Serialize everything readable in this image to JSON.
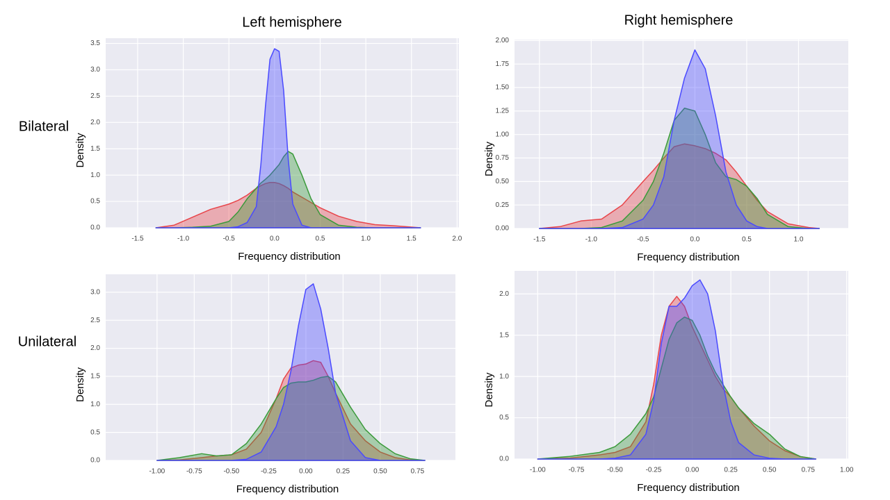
{
  "column_titles": [
    "Left hemisphere",
    "Right hemisphere"
  ],
  "row_labels": [
    "Bilateral",
    "Unilateral"
  ],
  "chart_data": [
    {
      "type": "area",
      "xlabel": "Frequency distribution",
      "ylabel": "Density",
      "grid": true,
      "background": "#eaeaf2",
      "xlim": [
        -1.85,
        2.02
      ],
      "ylim": [
        0,
        3.6
      ],
      "xticks": [
        -1.5,
        {
          "value": -1,
          "label": "-1.0"
        },
        -0.5,
        {
          "value": 0,
          "label": "0.0"
        },
        0.5,
        {
          "value": 1,
          "label": "1.0"
        },
        1.5,
        {
          "value": 2,
          "label": "2.0"
        }
      ],
      "yticks": [
        {
          "value": 0,
          "label": "0.0"
        },
        0.5,
        {
          "value": 1,
          "label": "1.0"
        },
        1.5,
        {
          "value": 2,
          "label": "2.0"
        },
        2.5,
        {
          "value": 3,
          "label": "3.0"
        },
        3.5
      ],
      "x": [
        -1.3,
        -1.1,
        -0.9,
        -0.7,
        -0.5,
        -0.4,
        -0.3,
        -0.2,
        -0.15,
        -0.1,
        -0.05,
        0,
        0.05,
        0.1,
        0.15,
        0.2,
        0.3,
        0.4,
        0.5,
        0.7,
        0.9,
        1.1,
        1.3,
        1.6
      ],
      "series": [
        {
          "color": "#e8454a",
          "values": [
            0,
            0.05,
            0.2,
            0.35,
            0.45,
            0.52,
            0.62,
            0.75,
            0.8,
            0.84,
            0.86,
            0.86,
            0.84,
            0.8,
            0.75,
            0.68,
            0.58,
            0.48,
            0.38,
            0.22,
            0.12,
            0.06,
            0.04,
            0
          ]
        },
        {
          "color": "#3a9a3a",
          "values": [
            0,
            0,
            0.01,
            0.03,
            0.12,
            0.3,
            0.55,
            0.75,
            0.85,
            0.92,
            1.0,
            1.1,
            1.2,
            1.35,
            1.45,
            1.4,
            1.0,
            0.55,
            0.25,
            0.05,
            0.01,
            0,
            0,
            0
          ]
        },
        {
          "color": "#4a4aff",
          "values": [
            0,
            0,
            0,
            0,
            0,
            0.02,
            0.1,
            0.4,
            1.2,
            2.3,
            3.2,
            3.4,
            3.35,
            2.6,
            1.3,
            0.45,
            0.05,
            0,
            0,
            0,
            0,
            0,
            0,
            0
          ]
        }
      ]
    },
    {
      "type": "area",
      "xlabel": "Frequency distribution",
      "ylabel": "Density",
      "grid": true,
      "background": "#eaeaf2",
      "xlim": [
        -1.74,
        1.48
      ],
      "ylim": [
        0,
        2.01
      ],
      "xticks": [
        -1.5,
        {
          "value": -1,
          "label": "-1.0"
        },
        -0.5,
        {
          "value": 0,
          "label": "0.0"
        },
        0.5,
        {
          "value": 1,
          "label": "1.0"
        }
      ],
      "yticks": [
        {
          "value": 0,
          "label": "0.00"
        },
        0.25,
        {
          "value": 0.5,
          "label": "0.50"
        },
        0.75,
        {
          "value": 1,
          "label": "1.00"
        },
        1.25,
        {
          "value": 1.5,
          "label": "1.50"
        },
        1.75,
        {
          "value": 2,
          "label": "2.00"
        }
      ],
      "x": [
        -1.5,
        -1.3,
        -1.1,
        -0.9,
        -0.7,
        -0.5,
        -0.4,
        -0.3,
        -0.2,
        -0.1,
        0,
        0.1,
        0.2,
        0.3,
        0.4,
        0.5,
        0.6,
        0.7,
        0.9,
        1.1,
        1.2
      ],
      "series": [
        {
          "color": "#e8454a",
          "values": [
            0,
            0.02,
            0.08,
            0.1,
            0.25,
            0.5,
            0.62,
            0.75,
            0.87,
            0.9,
            0.88,
            0.85,
            0.8,
            0.73,
            0.6,
            0.45,
            0.3,
            0.18,
            0.05,
            0.01,
            0
          ]
        },
        {
          "color": "#3a9a3a",
          "values": [
            0,
            0,
            0,
            0.01,
            0.08,
            0.3,
            0.5,
            0.8,
            1.15,
            1.28,
            1.25,
            1.0,
            0.7,
            0.55,
            0.52,
            0.45,
            0.32,
            0.15,
            0.02,
            0,
            0
          ]
        },
        {
          "color": "#4a4aff",
          "values": [
            0,
            0,
            0,
            0,
            0.01,
            0.1,
            0.25,
            0.55,
            1.15,
            1.6,
            1.9,
            1.7,
            1.2,
            0.6,
            0.25,
            0.08,
            0.02,
            0,
            0,
            0,
            0
          ]
        }
      ]
    },
    {
      "type": "area",
      "xlabel": "Frequency distribution",
      "ylabel": "Density",
      "grid": true,
      "background": "#eaeaf2",
      "xlim": [
        -1.345,
        1.005
      ],
      "ylim": [
        0,
        3.32
      ],
      "xticks": [
        {
          "value": -1,
          "label": "-1.00"
        },
        -0.75,
        {
          "value": -0.5,
          "label": "-0.50"
        },
        -0.25,
        {
          "value": 0,
          "label": "0.00"
        },
        0.25,
        {
          "value": 0.5,
          "label": "0.50"
        },
        0.75
      ],
      "yticks": [
        {
          "value": 0,
          "label": "0.0"
        },
        0.5,
        {
          "value": 1,
          "label": "1.0"
        },
        1.5,
        {
          "value": 2,
          "label": "2.0"
        },
        2.5,
        {
          "value": 3,
          "label": "3.0"
        }
      ],
      "x": [
        -1.0,
        -0.85,
        -0.7,
        -0.6,
        -0.5,
        -0.4,
        -0.3,
        -0.2,
        -0.15,
        -0.1,
        -0.05,
        0,
        0.05,
        0.1,
        0.15,
        0.2,
        0.3,
        0.4,
        0.5,
        0.6,
        0.7,
        0.8
      ],
      "series": [
        {
          "color": "#e8454a",
          "values": [
            0,
            0.01,
            0.05,
            0.08,
            0.1,
            0.2,
            0.5,
            1.1,
            1.45,
            1.65,
            1.7,
            1.72,
            1.78,
            1.75,
            1.5,
            1.2,
            0.65,
            0.35,
            0.15,
            0.05,
            0.01,
            0
          ]
        },
        {
          "color": "#3a9a3a",
          "values": [
            0,
            0.05,
            0.12,
            0.08,
            0.1,
            0.3,
            0.65,
            1.1,
            1.3,
            1.38,
            1.4,
            1.4,
            1.43,
            1.48,
            1.5,
            1.4,
            0.95,
            0.55,
            0.3,
            0.12,
            0.03,
            0
          ]
        },
        {
          "color": "#4a4aff",
          "values": [
            0,
            0,
            0,
            0,
            0,
            0.02,
            0.15,
            0.6,
            1.0,
            1.6,
            2.4,
            3.05,
            3.15,
            2.7,
            2.0,
            1.2,
            0.35,
            0.05,
            0,
            0,
            0,
            0
          ]
        }
      ]
    },
    {
      "type": "area",
      "xlabel": "Frequency distribution",
      "ylabel": "Density",
      "grid": true,
      "background": "#eaeaf2",
      "xlim": [
        -1.15,
        1.01
      ],
      "ylim": [
        0,
        2.28
      ],
      "xticks": [
        {
          "value": -1,
          "label": "-1.00"
        },
        -0.75,
        {
          "value": -0.5,
          "label": "-0.50"
        },
        -0.25,
        {
          "value": 0,
          "label": "0.00"
        },
        0.25,
        {
          "value": 0.5,
          "label": "0.50"
        },
        0.75,
        {
          "value": 1,
          "label": "1.00"
        }
      ],
      "yticks": [
        {
          "value": 0,
          "label": "0.0"
        },
        0.5,
        {
          "value": 1,
          "label": "1.0"
        },
        1.5,
        {
          "value": 2,
          "label": "2.0"
        }
      ],
      "x": [
        -1.0,
        -0.8,
        -0.6,
        -0.5,
        -0.4,
        -0.3,
        -0.25,
        -0.2,
        -0.15,
        -0.1,
        -0.05,
        0,
        0.05,
        0.1,
        0.15,
        0.2,
        0.25,
        0.3,
        0.4,
        0.5,
        0.6,
        0.7,
        0.8
      ],
      "series": [
        {
          "color": "#e8454a",
          "values": [
            0,
            0.01,
            0.05,
            0.08,
            0.15,
            0.45,
            0.9,
            1.5,
            1.85,
            1.97,
            1.85,
            1.6,
            1.4,
            1.2,
            1.0,
            0.85,
            0.75,
            0.62,
            0.4,
            0.22,
            0.1,
            0.03,
            0
          ]
        },
        {
          "color": "#3a9a3a",
          "values": [
            0,
            0.03,
            0.08,
            0.15,
            0.3,
            0.55,
            0.75,
            1.1,
            1.45,
            1.65,
            1.72,
            1.68,
            1.5,
            1.25,
            1.05,
            0.9,
            0.75,
            0.62,
            0.43,
            0.3,
            0.12,
            0.03,
            0
          ]
        },
        {
          "color": "#4a4aff",
          "values": [
            0,
            0,
            0,
            0.01,
            0.05,
            0.3,
            0.7,
            1.4,
            1.85,
            1.85,
            1.95,
            2.1,
            2.17,
            2.0,
            1.55,
            0.9,
            0.45,
            0.2,
            0.05,
            0.01,
            0,
            0,
            0
          ]
        }
      ]
    }
  ]
}
